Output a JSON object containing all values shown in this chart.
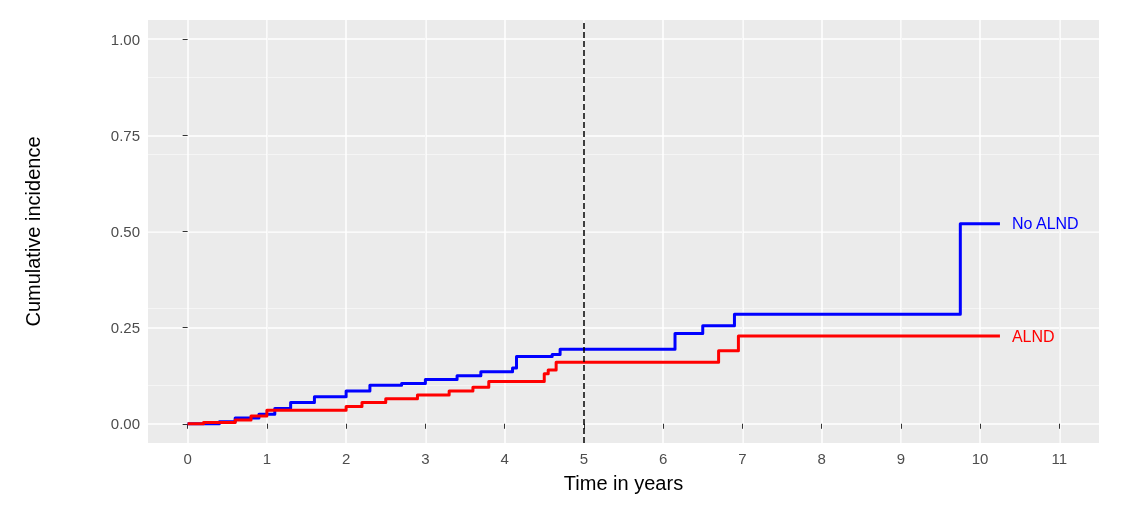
{
  "chart_data": {
    "type": "step",
    "xlabel": "Time in years",
    "ylabel": "Cumulative incidence",
    "xlim": [
      -0.5,
      11.5
    ],
    "xticks": [
      0,
      1,
      2,
      3,
      4,
      5,
      6,
      7,
      8,
      9,
      10,
      11
    ],
    "ylim": [
      -0.05,
      1.05
    ],
    "yticks": [
      {
        "value": 0,
        "label": "0.00"
      },
      0.25,
      {
        "value": 0.5,
        "label": "0.50"
      },
      0.75,
      {
        "value": 1,
        "label": "1.00"
      }
    ],
    "grid": true,
    "legend": false,
    "line_style": "solid",
    "ref_lines": [
      {
        "axis": "x",
        "value": 5,
        "color": "#000000",
        "line_style": "dashed"
      }
    ],
    "series": [
      {
        "name": "No ALND",
        "color": "#0000ff",
        "x": [
          0,
          0.4,
          0.6,
          0.9,
          1.1,
          1.3,
          1.6,
          2.0,
          2.3,
          2.7,
          3.0,
          3.4,
          3.7,
          4.1,
          4.15,
          4.6,
          4.7,
          6.15,
          6.5,
          6.9,
          9.75,
          10.25
        ],
        "values": [
          0,
          0.005,
          0.015,
          0.025,
          0.04,
          0.055,
          0.07,
          0.085,
          0.1,
          0.105,
          0.115,
          0.125,
          0.135,
          0.145,
          0.175,
          0.18,
          0.194,
          0.235,
          0.255,
          0.285,
          0.52,
          0.52
        ]
      },
      {
        "name": "ALND",
        "color": "#ff0000",
        "x": [
          0,
          0.2,
          0.6,
          0.8,
          1.0,
          2.0,
          2.2,
          2.5,
          2.9,
          3.3,
          3.6,
          3.8,
          4.5,
          4.55,
          4.65,
          6.7,
          6.95,
          10.25
        ],
        "values": [
          0,
          0.003,
          0.01,
          0.02,
          0.035,
          0.045,
          0.055,
          0.065,
          0.075,
          0.085,
          0.095,
          0.11,
          0.13,
          0.14,
          0.16,
          0.19,
          0.228,
          0.228
        ]
      }
    ]
  }
}
